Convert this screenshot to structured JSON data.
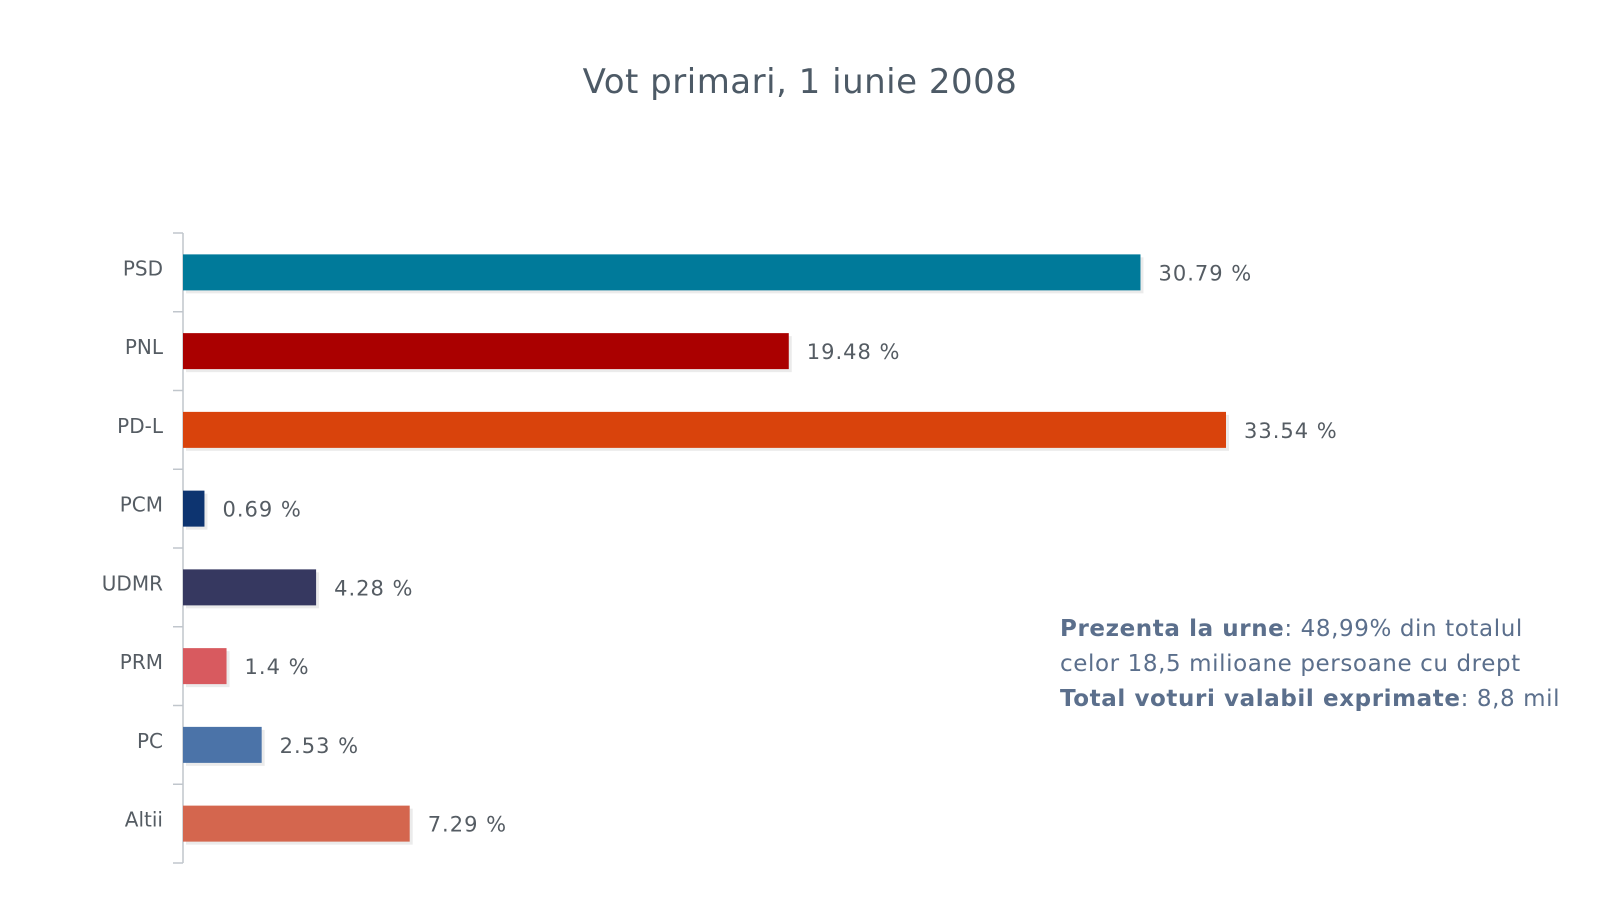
{
  "chart_data": {
    "type": "bar",
    "orientation": "horizontal",
    "title": "Vot primari, 1 iunie 2008",
    "categories": [
      "PSD",
      "PNL",
      "PD-L",
      "PCM",
      "UDMR",
      "PRM",
      "PC",
      "Altii"
    ],
    "values": [
      30.79,
      19.48,
      33.54,
      0.69,
      4.28,
      1.4,
      2.53,
      7.29
    ],
    "value_labels": [
      "30.79 %",
      "19.48 %",
      "33.54 %",
      "0.69 %",
      "4.28 %",
      "1.4 %",
      "2.53 %",
      "7.29 %"
    ],
    "colors": [
      "#007a9a",
      "#aa0000",
      "#d9430c",
      "#0d3470",
      "#363860",
      "#d85a5f",
      "#4b73a8",
      "#d4664e"
    ],
    "xlabel": "",
    "ylabel": "",
    "xlim": [
      0,
      33.54
    ],
    "grid": false
  },
  "note": {
    "line1_bold": "Prezenta la urne",
    "line1_rest": ": 48,99% din totalul",
    "line2": "celor 18,5 milioane persoane cu drept",
    "line3_bold": "Total voturi valabil exprimate",
    "line3_rest": ": 8,8 mil"
  }
}
